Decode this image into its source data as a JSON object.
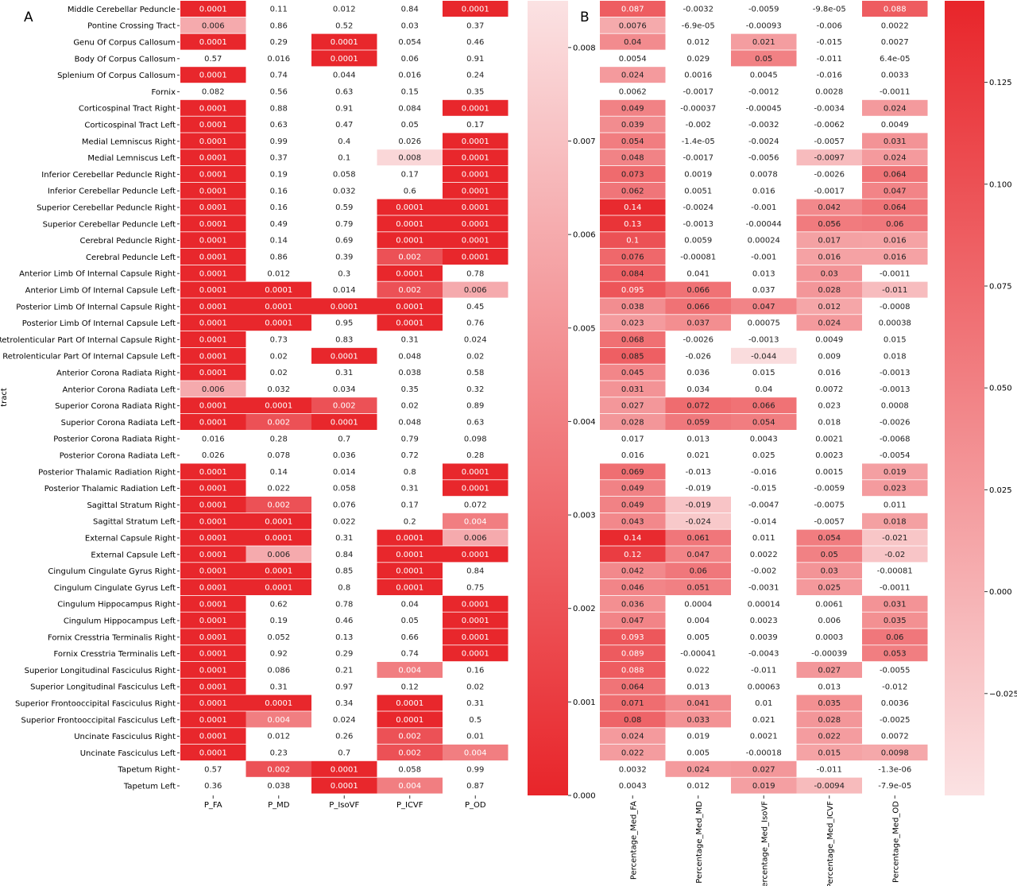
{
  "chart_data": [
    {
      "type": "heatmap",
      "panel_label": "A",
      "ylabel": "tract",
      "xlabel": "",
      "columns": [
        "P_FA",
        "P_MD",
        "P_IsoVF",
        "P_ICVF",
        "P_OD"
      ],
      "rows": [
        "Middle Cerebellar Peduncle",
        "Pontine Crossing Tract",
        "Genu Of Corpus Callosum",
        "Body Of Corpus Callosum",
        "Splenium Of Corpus Callosum",
        "Fornix",
        "Corticospinal Tract Right",
        "Corticospinal Tract Left",
        "Medial Lemniscus Right",
        "Medial Lemniscus Left",
        "Inferior Cerebellar Peduncle Right",
        "Inferior Cerebellar Peduncle Left",
        "Superior Cerebellar Peduncle Right",
        "Superior Cerebellar Peduncle Left",
        "Cerebral Peduncle Right",
        "Cerebral Peduncle Left",
        "Anterior Limb Of Internal Capsule Right",
        "Anterior Limb Of Internal Capsule Left",
        "Posterior Limb Of Internal Capsule Right",
        "Posterior Limb Of Internal Capsule Left",
        "Retrolenticular Part Of Internal Capsule Right",
        "Retrolenticular Part Of Internal Capsule Left",
        "Anterior Corona Radiata Right",
        "Anterior Corona Radiata Left",
        "Superior Corona Radiata Right",
        "Superior Corona Radiata Left",
        "Posterior Corona Radiata Right",
        "Posterior Corona Radiata Left",
        "Posterior Thalamic Radiation Right",
        "Posterior Thalamic Radiation Left",
        "Sagittal Stratum Right",
        "Sagittal Stratum Left",
        "External Capsule Right",
        "External Capsule Left",
        "Cingulum Cingulate Gyrus Right",
        "Cingulum Cingulate Gyrus Left",
        "Cingulum Hippocampus Right",
        "Cingulum Hippocampus Left",
        "Fornix Cresstria Terminalis Right",
        "Fornix Cresstria Terminalis Left",
        "Superior Longitudinal Fasciculus Right",
        "Superior Longitudinal Fasciculus Left",
        "Superior Frontooccipital Fasciculus Right",
        "Superior Frontooccipital Fasciculus Left",
        "Uncinate Fasciculus Right",
        "Uncinate Fasciculus Left",
        "Tapetum Right",
        "Tapetum Left"
      ],
      "values": [
        [
          "0.0001",
          "0.11",
          "0.012",
          "0.84",
          "0.0001"
        ],
        [
          "0.006",
          "0.86",
          "0.52",
          "0.03",
          "0.37"
        ],
        [
          "0.0001",
          "0.29",
          "0.0001",
          "0.054",
          "0.46"
        ],
        [
          "0.57",
          "0.016",
          "0.0001",
          "0.06",
          "0.91"
        ],
        [
          "0.0001",
          "0.74",
          "0.044",
          "0.016",
          "0.24"
        ],
        [
          "0.082",
          "0.56",
          "0.63",
          "0.15",
          "0.35"
        ],
        [
          "0.0001",
          "0.88",
          "0.91",
          "0.084",
          "0.0001"
        ],
        [
          "0.0001",
          "0.63",
          "0.47",
          "0.05",
          "0.17"
        ],
        [
          "0.0001",
          "0.99",
          "0.4",
          "0.026",
          "0.0001"
        ],
        [
          "0.0001",
          "0.37",
          "0.1",
          "0.008",
          "0.0001"
        ],
        [
          "0.0001",
          "0.19",
          "0.058",
          "0.17",
          "0.0001"
        ],
        [
          "0.0001",
          "0.16",
          "0.032",
          "0.6",
          "0.0001"
        ],
        [
          "0.0001",
          "0.16",
          "0.59",
          "0.0001",
          "0.0001"
        ],
        [
          "0.0001",
          "0.49",
          "0.79",
          "0.0001",
          "0.0001"
        ],
        [
          "0.0001",
          "0.14",
          "0.69",
          "0.0001",
          "0.0001"
        ],
        [
          "0.0001",
          "0.86",
          "0.39",
          "0.002",
          "0.0001"
        ],
        [
          "0.0001",
          "0.012",
          "0.3",
          "0.0001",
          "0.78"
        ],
        [
          "0.0001",
          "0.0001",
          "0.014",
          "0.002",
          "0.006"
        ],
        [
          "0.0001",
          "0.0001",
          "0.0001",
          "0.0001",
          "0.45"
        ],
        [
          "0.0001",
          "0.0001",
          "0.95",
          "0.0001",
          "0.76"
        ],
        [
          "0.0001",
          "0.73",
          "0.83",
          "0.31",
          "0.024"
        ],
        [
          "0.0001",
          "0.02",
          "0.0001",
          "0.048",
          "0.02"
        ],
        [
          "0.0001",
          "0.02",
          "0.31",
          "0.038",
          "0.58"
        ],
        [
          "0.006",
          "0.032",
          "0.034",
          "0.35",
          "0.32"
        ],
        [
          "0.0001",
          "0.0001",
          "0.002",
          "0.02",
          "0.89"
        ],
        [
          "0.0001",
          "0.002",
          "0.0001",
          "0.048",
          "0.63"
        ],
        [
          "0.016",
          "0.28",
          "0.7",
          "0.79",
          "0.098"
        ],
        [
          "0.026",
          "0.078",
          "0.036",
          "0.72",
          "0.28"
        ],
        [
          "0.0001",
          "0.14",
          "0.014",
          "0.8",
          "0.0001"
        ],
        [
          "0.0001",
          "0.022",
          "0.058",
          "0.31",
          "0.0001"
        ],
        [
          "0.0001",
          "0.002",
          "0.076",
          "0.17",
          "0.072"
        ],
        [
          "0.0001",
          "0.0001",
          "0.022",
          "0.2",
          "0.004"
        ],
        [
          "0.0001",
          "0.0001",
          "0.31",
          "0.0001",
          "0.006"
        ],
        [
          "0.0001",
          "0.006",
          "0.84",
          "0.0001",
          "0.0001"
        ],
        [
          "0.0001",
          "0.0001",
          "0.85",
          "0.0001",
          "0.84"
        ],
        [
          "0.0001",
          "0.0001",
          "0.8",
          "0.0001",
          "0.75"
        ],
        [
          "0.0001",
          "0.62",
          "0.78",
          "0.04",
          "0.0001"
        ],
        [
          "0.0001",
          "0.19",
          "0.46",
          "0.05",
          "0.0001"
        ],
        [
          "0.0001",
          "0.052",
          "0.13",
          "0.66",
          "0.0001"
        ],
        [
          "0.0001",
          "0.92",
          "0.29",
          "0.74",
          "0.0001"
        ],
        [
          "0.0001",
          "0.086",
          "0.21",
          "0.004",
          "0.16"
        ],
        [
          "0.0001",
          "0.31",
          "0.97",
          "0.12",
          "0.02"
        ],
        [
          "0.0001",
          "0.0001",
          "0.34",
          "0.0001",
          "0.31"
        ],
        [
          "0.0001",
          "0.004",
          "0.024",
          "0.0001",
          "0.5"
        ],
        [
          "0.0001",
          "0.012",
          "0.26",
          "0.002",
          "0.01"
        ],
        [
          "0.0001",
          "0.23",
          "0.7",
          "0.002",
          "0.004"
        ],
        [
          "0.57",
          "0.002",
          "0.0001",
          "0.058",
          "0.99"
        ],
        [
          "0.36",
          "0.038",
          "0.0001",
          "0.004",
          "0.87"
        ]
      ],
      "color_scale": {
        "min": 0.0,
        "max": 0.0085,
        "mask_above": 0.0085,
        "low_color": "#e8252a",
        "high_color": "#fbe2e3"
      },
      "colorbar_ticks": [
        "0.000",
        "0.001",
        "0.002",
        "0.003",
        "0.004",
        "0.005",
        "0.006",
        "0.007",
        "0.008"
      ]
    },
    {
      "type": "heatmap",
      "panel_label": "B",
      "ylabel": "",
      "xlabel": "",
      "columns": [
        "Percentage_Med_FA",
        "Percentage_Med_MD",
        "Percentage_Med_IsoVF",
        "Percentage_Med_ICVF",
        "Percentage_Med_OD"
      ],
      "values": [
        [
          "0.087",
          "-0.0032",
          "-0.0059",
          "-9.8e-05",
          "0.088"
        ],
        [
          "0.0076",
          "-6.9e-05",
          "-0.00093",
          "-0.006",
          "0.0022"
        ],
        [
          "0.04",
          "0.012",
          "0.021",
          "-0.015",
          "0.0027"
        ],
        [
          "0.0054",
          "0.029",
          "0.05",
          "-0.011",
          "6.4e-05"
        ],
        [
          "0.024",
          "0.0016",
          "0.0045",
          "-0.016",
          "0.0033"
        ],
        [
          "0.0062",
          "-0.0017",
          "-0.0012",
          "0.0028",
          "-0.0011"
        ],
        [
          "0.049",
          "-0.00037",
          "-0.00045",
          "-0.0034",
          "0.024"
        ],
        [
          "0.039",
          "-0.002",
          "-0.0032",
          "-0.0062",
          "0.0049"
        ],
        [
          "0.054",
          "-1.4e-05",
          "-0.0024",
          "-0.0057",
          "0.031"
        ],
        [
          "0.048",
          "-0.0017",
          "-0.0056",
          "-0.0097",
          "0.024"
        ],
        [
          "0.073",
          "0.0019",
          "0.0078",
          "-0.0026",
          "0.064"
        ],
        [
          "0.062",
          "0.0051",
          "0.016",
          "-0.0017",
          "0.047"
        ],
        [
          "0.14",
          "-0.0024",
          "-0.001",
          "0.042",
          "0.064"
        ],
        [
          "0.13",
          "-0.0013",
          "-0.00044",
          "0.056",
          "0.06"
        ],
        [
          "0.1",
          "0.0059",
          "0.00024",
          "0.017",
          "0.016"
        ],
        [
          "0.076",
          "-0.00081",
          "-0.001",
          "0.016",
          "0.016"
        ],
        [
          "0.084",
          "0.041",
          "0.013",
          "0.03",
          "-0.0011"
        ],
        [
          "0.095",
          "0.066",
          "0.037",
          "0.028",
          "-0.011"
        ],
        [
          "0.038",
          "0.066",
          "0.047",
          "0.012",
          "-0.0008"
        ],
        [
          "0.023",
          "0.037",
          "0.00075",
          "0.024",
          "0.00038"
        ],
        [
          "0.068",
          "-0.0026",
          "-0.0013",
          "0.0049",
          "0.015"
        ],
        [
          "0.085",
          "-0.026",
          "-0.044",
          "0.009",
          "0.018"
        ],
        [
          "0.045",
          "0.036",
          "0.015",
          "0.016",
          "-0.0013"
        ],
        [
          "0.031",
          "0.034",
          "0.04",
          "0.0072",
          "-0.0013"
        ],
        [
          "0.027",
          "0.072",
          "0.066",
          "0.023",
          "0.0008"
        ],
        [
          "0.028",
          "0.059",
          "0.054",
          "0.018",
          "-0.0026"
        ],
        [
          "0.017",
          "0.013",
          "0.0043",
          "0.0021",
          "-0.0068"
        ],
        [
          "0.016",
          "0.021",
          "0.025",
          "0.0023",
          "-0.0054"
        ],
        [
          "0.069",
          "-0.013",
          "-0.016",
          "0.0015",
          "0.019"
        ],
        [
          "0.049",
          "-0.019",
          "-0.015",
          "-0.0059",
          "0.023"
        ],
        [
          "0.049",
          "-0.019",
          "-0.0047",
          "-0.0075",
          "0.011"
        ],
        [
          "0.043",
          "-0.024",
          "-0.014",
          "-0.0057",
          "0.018"
        ],
        [
          "0.14",
          "0.061",
          "0.011",
          "0.054",
          "-0.021"
        ],
        [
          "0.12",
          "0.047",
          "0.0022",
          "0.05",
          "-0.02"
        ],
        [
          "0.042",
          "0.06",
          "-0.002",
          "0.03",
          "-0.00081"
        ],
        [
          "0.046",
          "0.051",
          "-0.0031",
          "0.025",
          "-0.0011"
        ],
        [
          "0.036",
          "0.0004",
          "0.00014",
          "0.0061",
          "0.031"
        ],
        [
          "0.047",
          "0.004",
          "0.0023",
          "0.006",
          "0.035"
        ],
        [
          "0.093",
          "0.005",
          "0.0039",
          "0.0003",
          "0.06"
        ],
        [
          "0.089",
          "-0.00041",
          "-0.0043",
          "-0.00039",
          "0.053"
        ],
        [
          "0.088",
          "0.022",
          "-0.011",
          "0.027",
          "-0.0055"
        ],
        [
          "0.064",
          "0.013",
          "0.00063",
          "0.013",
          "-0.012"
        ],
        [
          "0.071",
          "0.041",
          "0.01",
          "0.035",
          "0.0036"
        ],
        [
          "0.08",
          "0.033",
          "0.021",
          "0.028",
          "-0.0025"
        ],
        [
          "0.024",
          "0.019",
          "0.0021",
          "0.022",
          "0.0072"
        ],
        [
          "0.022",
          "0.005",
          "-0.00018",
          "0.015",
          "0.0098"
        ],
        [
          "0.0032",
          "0.024",
          "0.027",
          "-0.011",
          "-1.3e-06"
        ],
        [
          "0.0043",
          "0.012",
          "0.019",
          "-0.0094",
          "-7.9e-05"
        ]
      ],
      "mask_p_above": 0.0085,
      "color_scale": {
        "min": -0.05,
        "max": 0.145,
        "low_color": "#fbe2e3",
        "high_color": "#e8252a"
      },
      "colorbar_ticks": [
        "−0.025",
        "0.000",
        "0.025",
        "0.050",
        "0.075",
        "0.100",
        "0.125"
      ]
    }
  ]
}
